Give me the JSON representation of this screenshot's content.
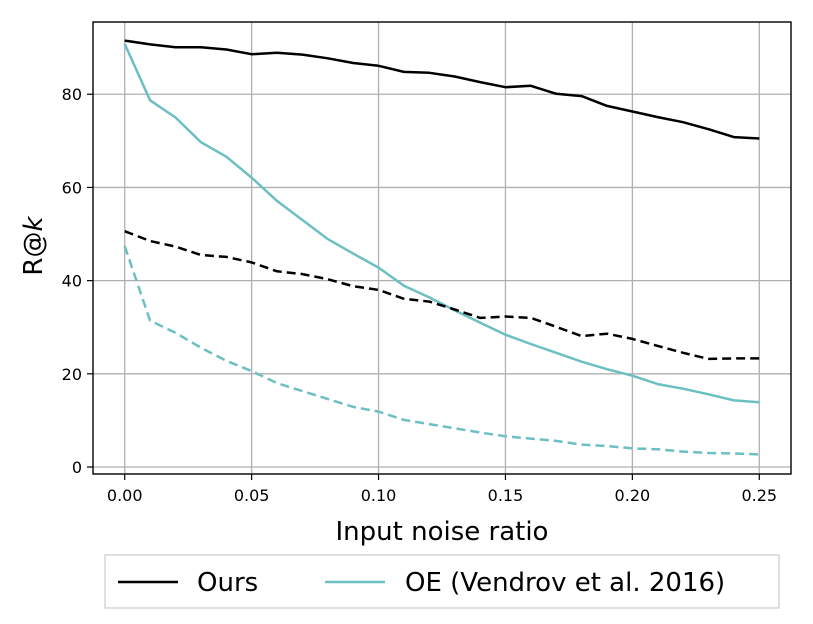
{
  "chart_data": {
    "type": "line",
    "title": "",
    "xlabel": "Input noise ratio",
    "ylabel_prefix": "R@",
    "ylabel_italic": "k",
    "xlim": [
      -0.0125,
      0.2625
    ],
    "ylim": [
      -1.5,
      95.5
    ],
    "xticks": [
      0.0,
      0.05,
      0.1,
      0.15,
      0.2,
      0.25
    ],
    "xtick_labels": [
      "0.00",
      "0.05",
      "0.10",
      "0.15",
      "0.20",
      "0.25"
    ],
    "yticks": [
      0,
      20,
      40,
      60,
      80
    ],
    "ytick_labels": [
      "0",
      "20",
      "40",
      "60",
      "80"
    ],
    "grid": true,
    "legend_position": "below",
    "x": [
      0.0,
      0.01,
      0.02,
      0.03,
      0.04,
      0.05,
      0.06,
      0.07,
      0.08,
      0.09,
      0.1,
      0.11,
      0.12,
      0.13,
      0.14,
      0.15,
      0.16,
      0.17,
      0.18,
      0.19,
      0.2,
      0.21,
      0.22,
      0.23,
      0.24,
      0.25
    ],
    "series": [
      {
        "name": "Ours",
        "legend_label": "Ours",
        "metric": "solid",
        "color": "#000000",
        "dash": "",
        "values": [
          91.5,
          90.7,
          90.1,
          90.1,
          89.6,
          88.6,
          88.9,
          88.5,
          87.7,
          86.7,
          86.1,
          84.8,
          84.6,
          83.8,
          82.6,
          81.5,
          81.8,
          80.1,
          79.6,
          77.5,
          76.3,
          75.1,
          74.0,
          72.5,
          70.8,
          70.5
        ]
      },
      {
        "name": "OE (Vendrov et al. 2016)",
        "legend_label": "OE (Vendrov et al. 2016)",
        "metric": "solid",
        "color": "#6cbfc2",
        "dash": "",
        "values": [
          90.8,
          78.7,
          75.0,
          69.7,
          66.6,
          62.1,
          57.1,
          53.0,
          48.9,
          45.8,
          42.8,
          38.9,
          36.4,
          33.6,
          31.0,
          28.4,
          26.4,
          24.5,
          22.6,
          21.0,
          19.6,
          17.8,
          16.8,
          15.6,
          14.3,
          13.9
        ]
      },
      {
        "name": "Ours (dashed)",
        "legend_label": "",
        "metric": "dashed",
        "color": "#000000",
        "dash": "9,5",
        "values": [
          50.6,
          48.5,
          47.3,
          45.5,
          45.1,
          43.9,
          42.0,
          41.4,
          40.3,
          38.8,
          38.0,
          36.1,
          35.5,
          33.8,
          32.0,
          32.3,
          32.0,
          30.1,
          28.1,
          28.6,
          27.5,
          26.0,
          24.5,
          23.2,
          23.3,
          23.3
        ]
      },
      {
        "name": "OE (Vendrov et al. 2016) (dashed)",
        "legend_label": "",
        "metric": "dashed",
        "color": "#6cbfc2",
        "dash": "9,5",
        "values": [
          47.4,
          31.4,
          28.8,
          25.6,
          22.8,
          20.6,
          18.0,
          16.3,
          14.6,
          12.9,
          11.9,
          10.1,
          9.2,
          8.3,
          7.4,
          6.6,
          6.1,
          5.6,
          4.8,
          4.5,
          4.0,
          3.8,
          3.3,
          3.0,
          2.9,
          2.7
        ]
      }
    ]
  }
}
